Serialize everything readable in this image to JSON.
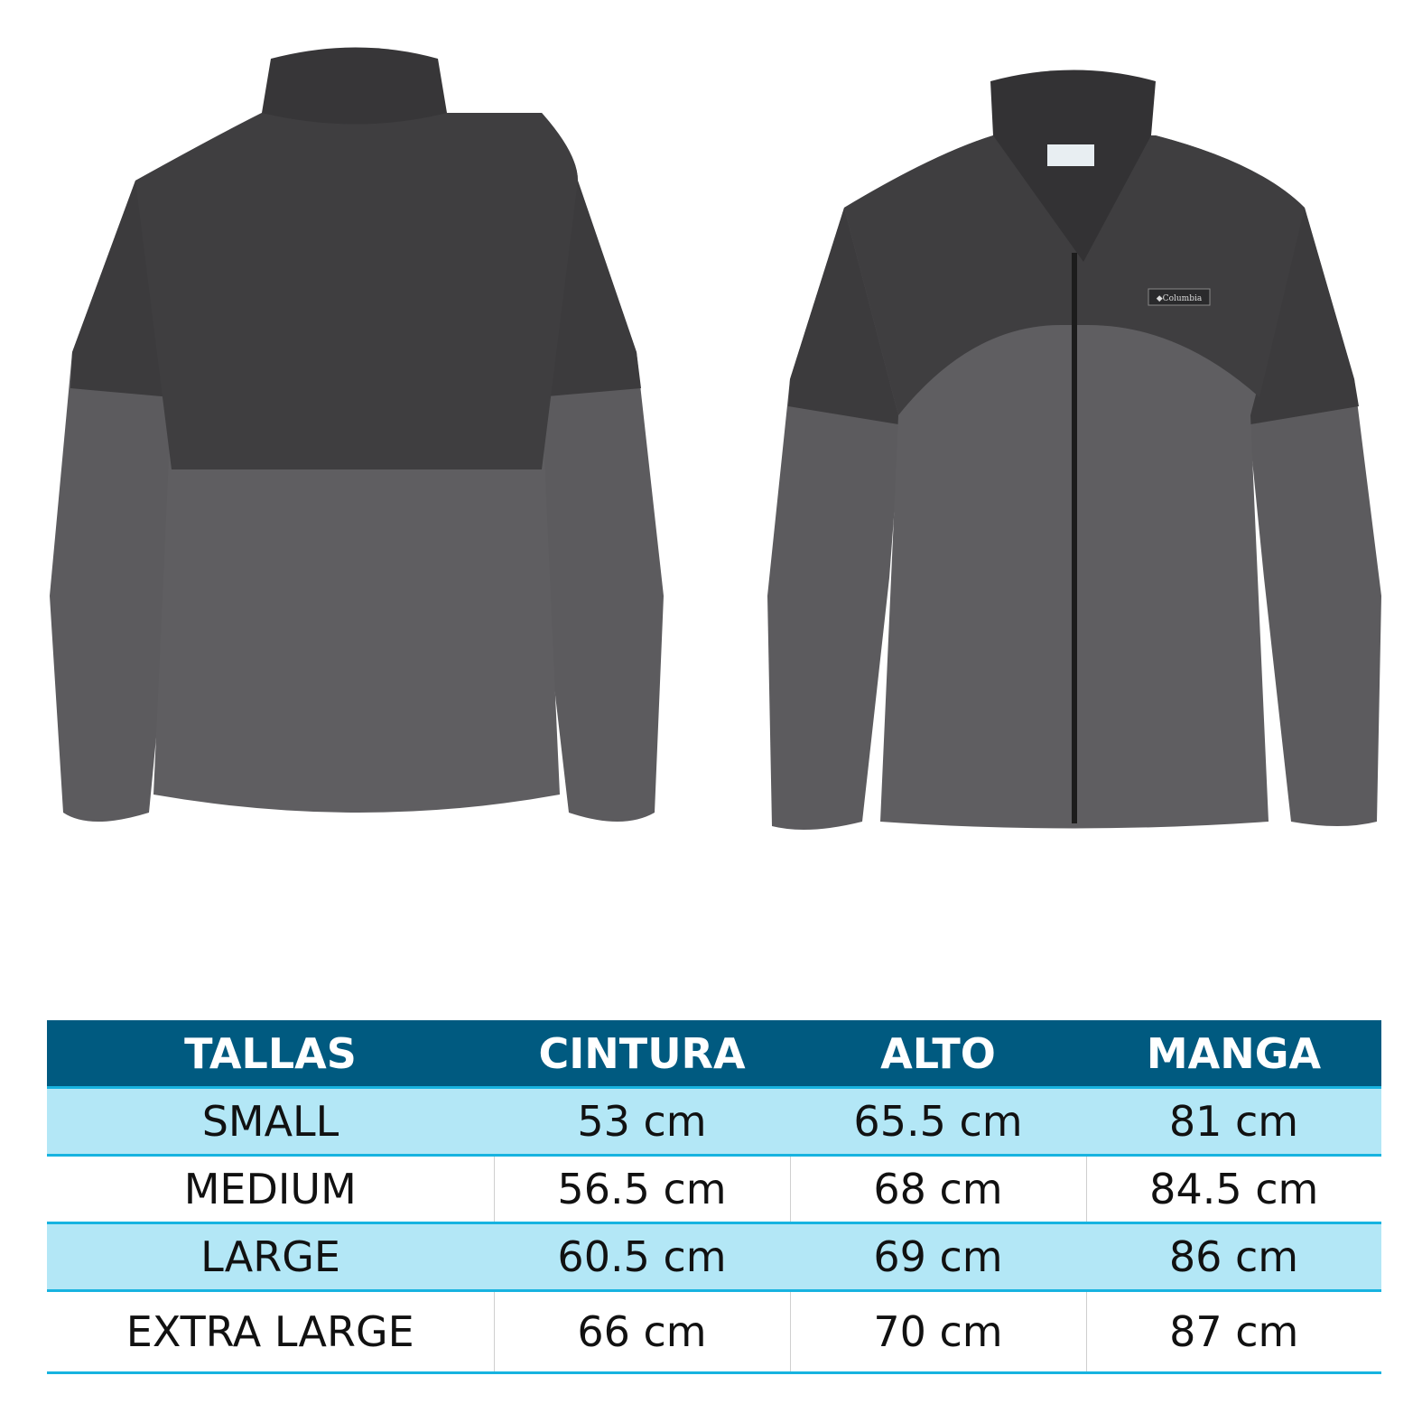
{
  "product": {
    "views": [
      "back",
      "front"
    ],
    "brand_logo": "Columbia",
    "colors": {
      "dark_panel": "#3f3e40",
      "light_panel": "#5e5d60",
      "header": "#005a80",
      "row_alt": "#b3e7f6",
      "row_line": "#17b3e0"
    }
  },
  "size_table": {
    "headers": [
      "TALLAS",
      "CINTURA",
      "ALTO",
      "MANGA"
    ],
    "rows": [
      [
        "SMALL",
        "53 cm",
        "65.5 cm",
        "81 cm"
      ],
      [
        "MEDIUM",
        "56.5 cm",
        "68 cm",
        "84.5 cm"
      ],
      [
        "LARGE",
        "60.5 cm",
        "69 cm",
        "86 cm"
      ],
      [
        "EXTRA LARGE",
        "66 cm",
        "70 cm",
        "87 cm"
      ]
    ]
  }
}
